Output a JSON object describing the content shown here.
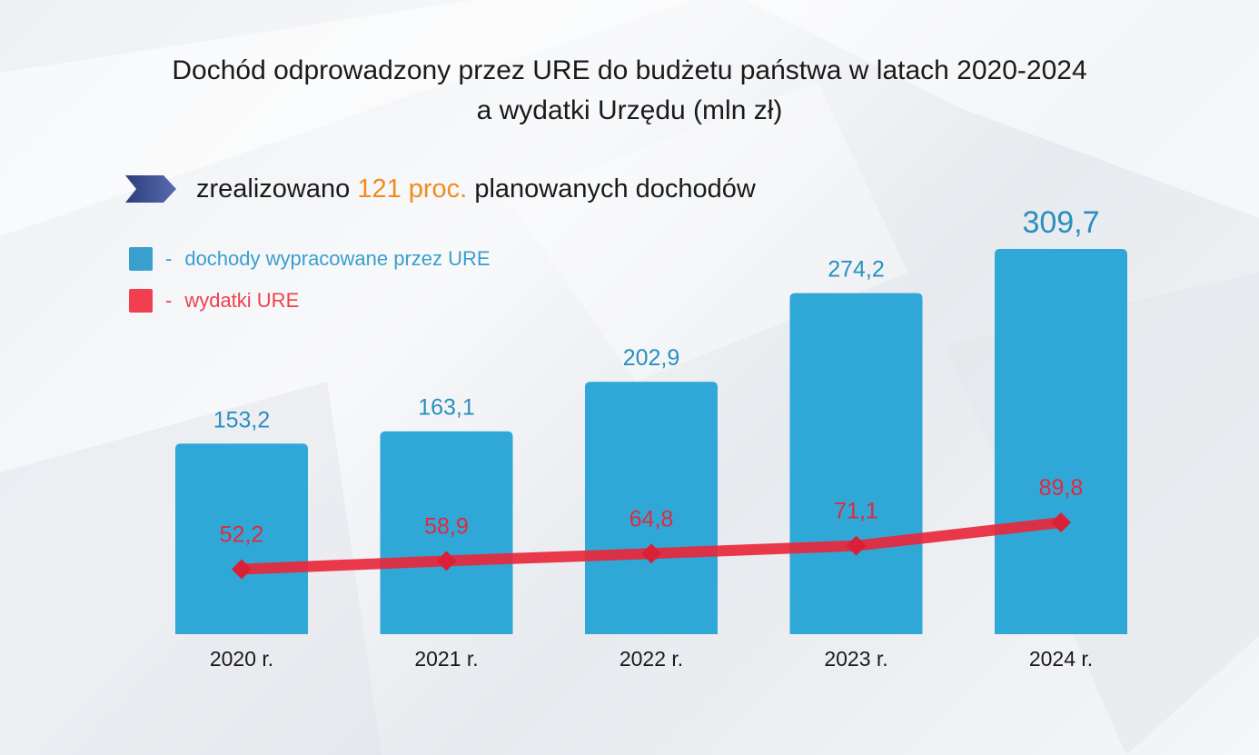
{
  "title": {
    "line1": "Dochód odprowadzony przez URE do budżetu państwa w latach 2020-2024",
    "line2": "a wydatki Urzędu (mln zł)"
  },
  "headline": {
    "prefix": "zrealizowano",
    "highlight": "121 proc.",
    "suffix": "planowanych dochodów",
    "highlight_color": "#f28c1e",
    "arrow_icon": "chevron-arrow-icon"
  },
  "legend": {
    "items": [
      {
        "dash": "-",
        "label": "dochody wypracowane przez URE",
        "color": "#3a9fcc"
      },
      {
        "dash": "-",
        "label": "wydatki URE",
        "color": "#f0404d"
      }
    ]
  },
  "chart_data": {
    "type": "bar",
    "categories": [
      "2020 r.",
      "2021 r.",
      "2022 r.",
      "2023 r.",
      "2024 r."
    ],
    "series": [
      {
        "name": "dochody wypracowane przez URE",
        "type": "bar",
        "values": [
          153.2,
          163.1,
          202.9,
          274.2,
          309.7
        ],
        "labels": [
          "153,2",
          "163,1",
          "202,9",
          "274,2",
          "309,7"
        ],
        "color": "#2fa8d8"
      },
      {
        "name": "wydatki URE",
        "type": "line",
        "values": [
          52.2,
          58.9,
          64.8,
          71.1,
          89.8
        ],
        "labels": [
          "52,2",
          "58,9",
          "64,8",
          "71,1",
          "89,8"
        ],
        "color": "#e8283c"
      }
    ],
    "ylim": [
      0,
      309.7
    ],
    "grid": false,
    "legend_position": "top-left"
  }
}
